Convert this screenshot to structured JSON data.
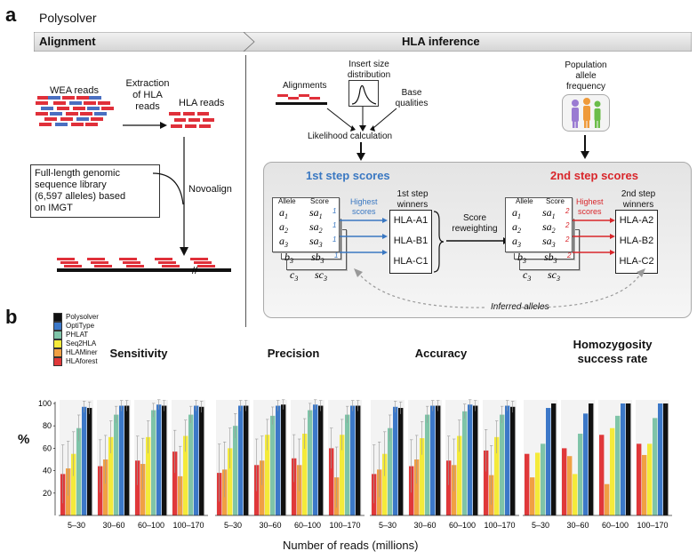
{
  "panel_a": {
    "letter": "a",
    "title": "Polysolver",
    "banner_left": "Alignment",
    "banner_right": "HLA inference",
    "wea_reads": "WEA reads",
    "extraction": "Extraction\nof HLA\nreads",
    "hla_reads": "HLA reads",
    "library": "Full-length genomic\nsequence library\n(6,597 alleles) based\non IMGT",
    "novoalign": "Novoalign",
    "alignments": "Alignments",
    "insert_size": "Insert size\ndistribution",
    "base_qualities": "Base\nqualities",
    "likelihood": "Likelihood calculation",
    "population": "Population\nallele\nfrequency",
    "step1_title": "1st step scores",
    "step2_title": "2nd step scores",
    "allele_hdr": "Allele",
    "score_hdr": "Score",
    "highest_scores": "Highest\nscores",
    "step1_winners": "1st step\nwinners",
    "step2_winners": "2nd step\nwinners",
    "score_reweighting": "Score\nreweighting",
    "inferred_alleles": "Inferred alleles",
    "w1": [
      "HLA-A1",
      "HLA-B1",
      "HLA-C1"
    ],
    "w2": [
      "HLA-A2",
      "HLA-B2",
      "HLA-C2"
    ],
    "colors": {
      "blue": "#3a78c2",
      "red": "#d9262b",
      "read_red": "#e0303a",
      "read_blue": "#4a6fc1"
    }
  },
  "panel_b": {
    "letter": "b",
    "ylabel": "%",
    "xlabel": "Number of reads (millions)",
    "legend": [
      {
        "name": "Polysolver",
        "color": "#111111"
      },
      {
        "name": "OptiType",
        "color": "#3c78c8"
      },
      {
        "name": "PHLAT",
        "color": "#7fc4a8"
      },
      {
        "name": "Seq2HLA",
        "color": "#f4ea3a"
      },
      {
        "name": "HLAMiner",
        "color": "#f0a044"
      },
      {
        "name": "HLAforest",
        "color": "#e0383a"
      }
    ],
    "yticks": [
      "20",
      "40",
      "60",
      "80",
      "100"
    ]
  },
  "chart_data": [
    {
      "type": "bar",
      "title": "Sensitivity",
      "categories": [
        "5–30",
        "30–60",
        "60–100",
        "100–170"
      ],
      "ylim": [
        0,
        100
      ],
      "series": [
        {
          "name": "HLAforest",
          "values": [
            37,
            44,
            49,
            57
          ]
        },
        {
          "name": "HLAMiner",
          "values": [
            42,
            50,
            46,
            35
          ]
        },
        {
          "name": "Seq2HLA",
          "values": [
            55,
            70,
            70,
            71
          ]
        },
        {
          "name": "PHLAT",
          "values": [
            78,
            90,
            94,
            90
          ]
        },
        {
          "name": "OptiType",
          "values": [
            97,
            98,
            99,
            98
          ]
        },
        {
          "name": "Polysolver",
          "values": [
            96,
            98,
            98,
            97
          ]
        }
      ]
    },
    {
      "type": "bar",
      "title": "Precision",
      "categories": [
        "5–30",
        "30–60",
        "60–100",
        "100–170"
      ],
      "ylim": [
        0,
        100
      ],
      "series": [
        {
          "name": "HLAforest",
          "values": [
            38,
            45,
            51,
            60
          ]
        },
        {
          "name": "HLAMiner",
          "values": [
            41,
            49,
            45,
            34
          ]
        },
        {
          "name": "Seq2HLA",
          "values": [
            60,
            72,
            73,
            72
          ]
        },
        {
          "name": "PHLAT",
          "values": [
            80,
            89,
            94,
            90
          ]
        },
        {
          "name": "OptiType",
          "values": [
            98,
            98,
            99,
            98
          ]
        },
        {
          "name": "Polysolver",
          "values": [
            98,
            99,
            98,
            98
          ]
        }
      ]
    },
    {
      "type": "bar",
      "title": "Accuracy",
      "categories": [
        "5–30",
        "30–60",
        "60–100",
        "100–170"
      ],
      "ylim": [
        0,
        100
      ],
      "series": [
        {
          "name": "HLAforest",
          "values": [
            37,
            44,
            49,
            58
          ]
        },
        {
          "name": "HLAMiner",
          "values": [
            41,
            50,
            45,
            36
          ]
        },
        {
          "name": "Seq2HLA",
          "values": [
            55,
            69,
            71,
            70
          ]
        },
        {
          "name": "PHLAT",
          "values": [
            78,
            90,
            93,
            90
          ]
        },
        {
          "name": "OptiType",
          "values": [
            97,
            98,
            99,
            98
          ]
        },
        {
          "name": "Polysolver",
          "values": [
            96,
            98,
            98,
            97
          ]
        }
      ]
    },
    {
      "type": "bar",
      "title": "Homozygosity\nsuccess rate",
      "categories": [
        "5–30",
        "30–60",
        "60–100",
        "100–170"
      ],
      "ylim": [
        0,
        100
      ],
      "series": [
        {
          "name": "HLAforest",
          "values": [
            55,
            60,
            72,
            64
          ]
        },
        {
          "name": "HLAMiner",
          "values": [
            34,
            53,
            28,
            54
          ]
        },
        {
          "name": "Seq2HLA",
          "values": [
            56,
            37,
            78,
            64
          ]
        },
        {
          "name": "PHLAT",
          "values": [
            64,
            73,
            89,
            87
          ]
        },
        {
          "name": "OptiType",
          "values": [
            96,
            91,
            100,
            100
          ]
        },
        {
          "name": "Polysolver",
          "values": [
            100,
            100,
            100,
            100
          ]
        }
      ]
    }
  ]
}
